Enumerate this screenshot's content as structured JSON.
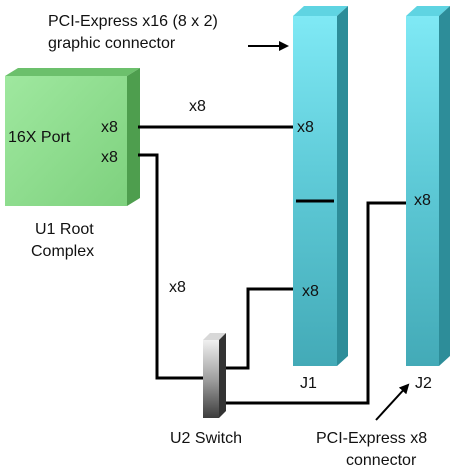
{
  "labels": {
    "top_connector_line1": "PCI-Express x16 (8 x 2)",
    "top_connector_line2": "graphic connector",
    "port_label": "16X Port",
    "port_lane_top": "x8",
    "port_lane_bottom": "x8",
    "root_line1": "U1 Root",
    "root_line2": "Complex",
    "link_top": "x8",
    "link_left": "x8",
    "j1_lane_top": "x8",
    "j1_lane_bottom": "x8",
    "j2_lane": "x8",
    "j1_name": "J1",
    "j2_name": "J2",
    "switch_name": "U2 Switch",
    "bottom_connector_line1": "PCI-Express x8",
    "bottom_connector_line2": "connector"
  },
  "colors": {
    "root_front": "#8fdf8f",
    "root_top": "#6cc06c",
    "root_side": "#4e9e4e",
    "slot_light": "#7be6f2",
    "slot_dark": "#47b2c0",
    "slot_side": "#2d8d99",
    "switch_light": "#e6e6e6",
    "switch_dark": "#5a5a5a",
    "wire": "#000000"
  }
}
